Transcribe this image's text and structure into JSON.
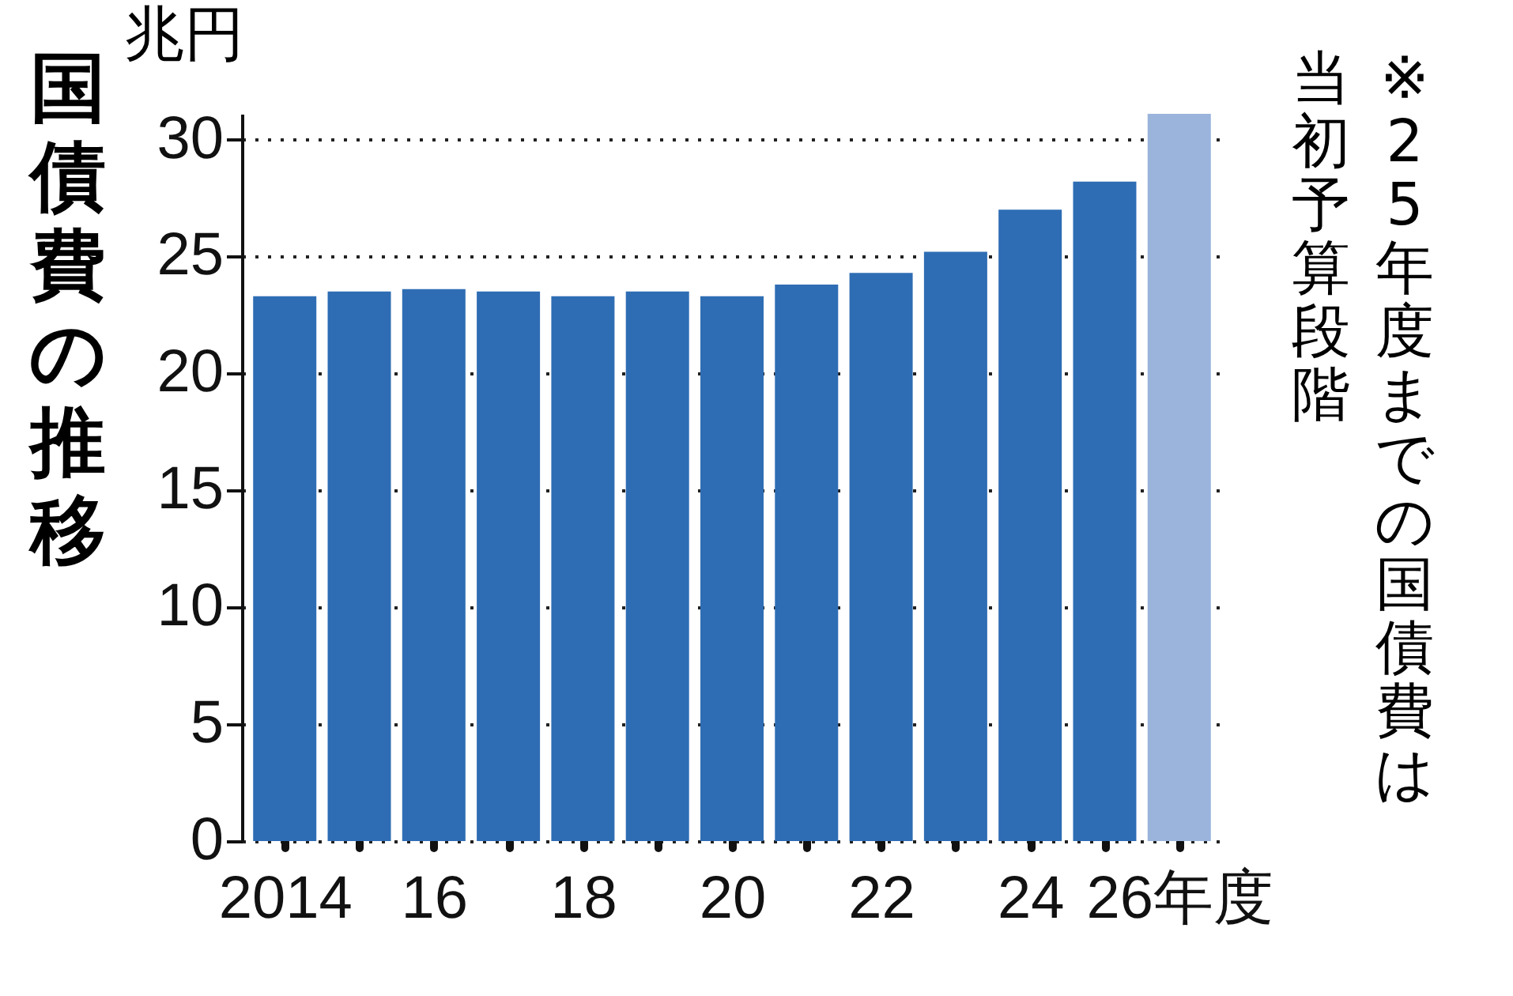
{
  "chart_data": {
    "type": "bar",
    "title": "国債費の推移",
    "ylabel": "兆円",
    "categories": [
      "2014",
      null,
      "16",
      null,
      "18",
      null,
      "20",
      null,
      "22",
      null,
      "24",
      null,
      "26年度"
    ],
    "values": [
      23.3,
      23.5,
      23.6,
      23.5,
      23.3,
      23.5,
      23.3,
      23.8,
      24.3,
      25.2,
      27.0,
      28.2,
      31.1
    ],
    "colors": [
      "#2e6db4",
      "#2e6db4",
      "#2e6db4",
      "#2e6db4",
      "#2e6db4",
      "#2e6db4",
      "#2e6db4",
      "#2e6db4",
      "#2e6db4",
      "#2e6db4",
      "#2e6db4",
      "#2e6db4",
      "#9ab4dc"
    ],
    "ylim": [
      0,
      31.1
    ],
    "yticks": [
      0,
      5,
      10,
      15,
      20,
      25,
      30
    ],
    "grid": "y",
    "annotations": [
      "※25年度までの国債費は当初予算段階"
    ]
  }
}
